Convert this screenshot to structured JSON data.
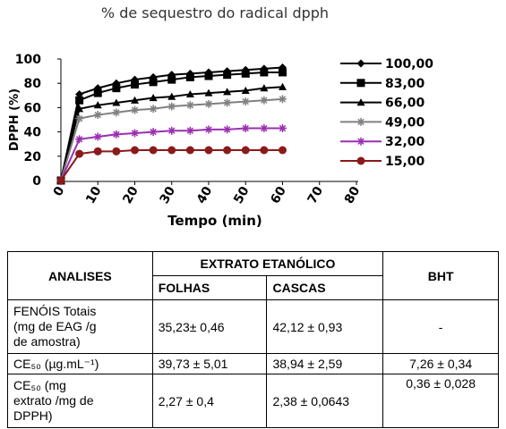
{
  "chart_data": {
    "type": "line",
    "title": "% de sequestro do radical dpph",
    "x_label": "Tempo (min)",
    "y_label": "DPPH (%)",
    "x": [
      0,
      5,
      10,
      15,
      20,
      25,
      30,
      35,
      40,
      45,
      50,
      55,
      60
    ],
    "xlim": [
      0,
      80
    ],
    "xticks": [
      0,
      10,
      20,
      30,
      40,
      50,
      60,
      70,
      80
    ],
    "ylim": [
      0,
      100
    ],
    "yticks": [
      0,
      20,
      40,
      60,
      80,
      100
    ],
    "series": [
      {
        "name": "100,00",
        "color": "#000000",
        "marker": "diamond",
        "values": [
          0,
          71,
          76,
          80,
          83,
          85,
          87,
          88,
          89,
          90,
          91,
          92,
          93
        ]
      },
      {
        "name": "83,00",
        "color": "#000000",
        "marker": "square",
        "values": [
          0,
          66,
          72,
          76,
          79,
          81,
          83,
          85,
          86,
          87,
          88,
          89,
          89
        ]
      },
      {
        "name": "66,00",
        "color": "#000000",
        "marker": "triangle",
        "values": [
          0,
          59,
          62,
          64,
          66,
          68,
          69,
          71,
          72,
          73,
          74,
          76,
          77
        ]
      },
      {
        "name": "49,00",
        "color": "#808080",
        "marker": "asterisk",
        "values": [
          0,
          51,
          54,
          56,
          58,
          59,
          61,
          62,
          63,
          64,
          65,
          66,
          67
        ]
      },
      {
        "name": "32,00",
        "color": "#9a2fb0",
        "marker": "asterisk",
        "values": [
          0,
          34,
          36,
          38,
          39,
          40,
          41,
          41,
          42,
          42,
          43,
          43,
          43
        ]
      },
      {
        "name": "15,00",
        "color": "#8b1a1a",
        "marker": "circle",
        "values": [
          0,
          22,
          24,
          24,
          25,
          25,
          25,
          25,
          25,
          25,
          25,
          25,
          25
        ]
      }
    ]
  },
  "table": {
    "header": [
      "ANALISES",
      "EXTRATO ETANÓLICO",
      "BHT"
    ],
    "subheader": [
      "FOLHAS",
      "CASCAS"
    ],
    "rows": [
      [
        "FENÓIS Totais\n(mg de EAG /g\nde amostra)",
        "35,23±  0,46",
        "42,12 ±  0,93",
        "-"
      ],
      [
        "CE₅₀ (µg.mL⁻¹)",
        "39,73 ± 5,01",
        "38,94 ± 2,59",
        "7,26 ± 0,34"
      ],
      [
        "CE₅₀ (mg\nextrato /mg de\nDPPH)",
        "2,27 ± 0,4",
        "2,38 ± 0,0643",
        "0,36 ± 0,028"
      ]
    ]
  }
}
